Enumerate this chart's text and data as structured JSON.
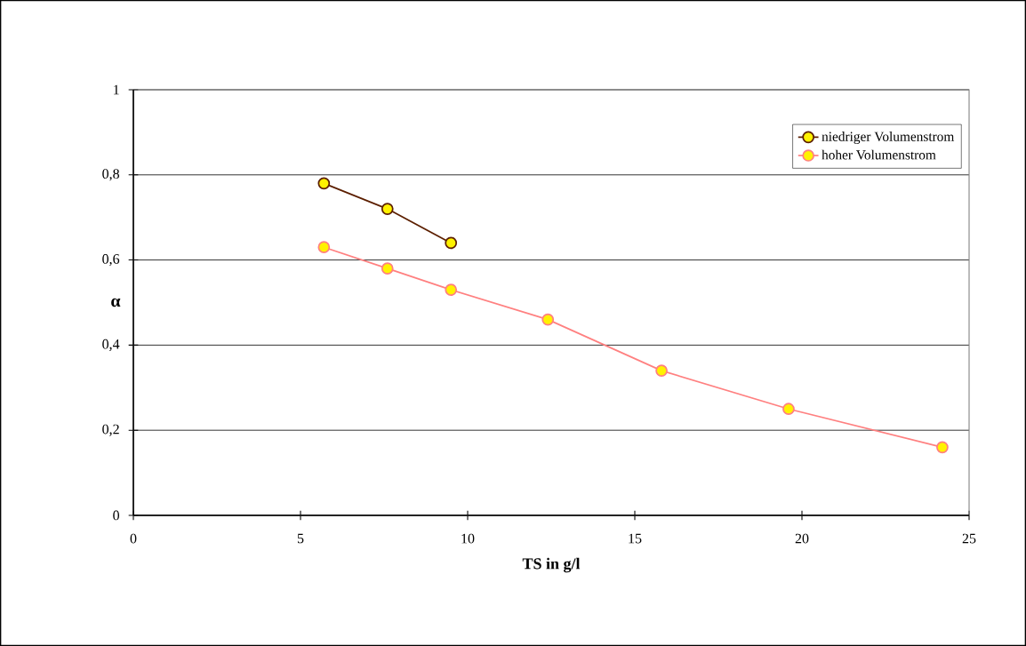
{
  "chart_data": {
    "type": "line",
    "xlabel": "TS in g/l",
    "ylabel": "α",
    "xlim": [
      0,
      25
    ],
    "xticks": [
      0,
      5,
      10,
      15,
      20,
      25
    ],
    "ylim": [
      0,
      1
    ],
    "yticks": [
      0,
      {
        "value": 0.2,
        "label": "0,2"
      },
      {
        "value": 0.4,
        "label": "0,4"
      },
      {
        "value": 0.6,
        "label": "0,6"
      },
      {
        "value": 0.8,
        "label": "0,8"
      },
      1
    ],
    "grid": "y",
    "legend": "top right",
    "marker": "circle",
    "line_style": "solid",
    "series": [
      {
        "name": "niedriger Volumenstrom",
        "color": "#5c1f00",
        "x": [
          5.7,
          7.6,
          9.5
        ],
        "values": [
          0.78,
          0.72,
          0.64
        ]
      },
      {
        "name": "hoher Volumenstrom",
        "color": "#ff8080",
        "x": [
          5.7,
          7.6,
          9.5,
          12.4,
          15.8,
          19.6,
          24.2
        ],
        "values": [
          0.63,
          0.58,
          0.53,
          0.46,
          0.34,
          0.25,
          0.16
        ]
      }
    ]
  }
}
